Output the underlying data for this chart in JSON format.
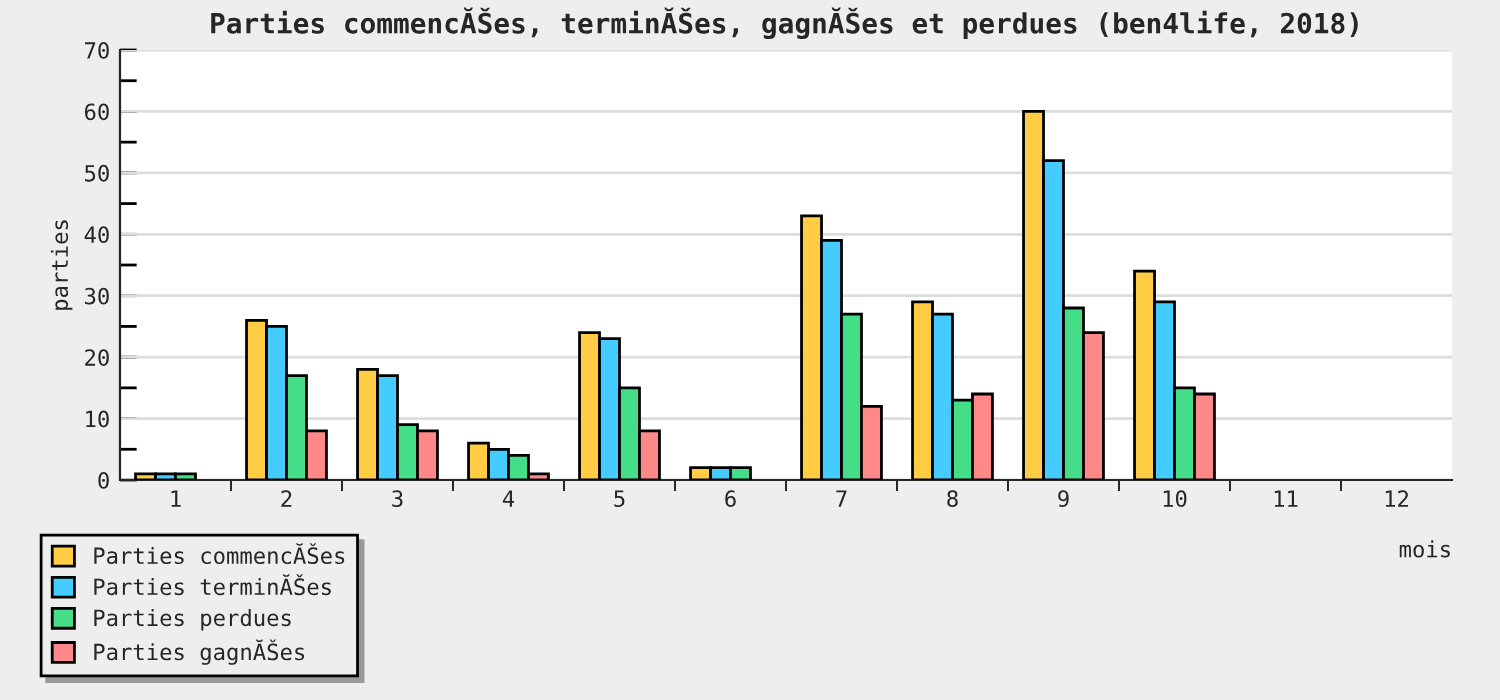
{
  "chart_data": {
    "type": "bar",
    "title": "Parties commencĂŠes, terminĂŠes, gagnĂŠes et perdues (ben4life, 2018)",
    "xlabel": "mois",
    "ylabel": "parties",
    "categories": [
      "1",
      "2",
      "3",
      "4",
      "5",
      "6",
      "7",
      "8",
      "9",
      "10",
      "11",
      "12"
    ],
    "series": [
      {
        "name": "Parties commencĂŠes",
        "color": "#ffcc44",
        "values": [
          1,
          26,
          18,
          6,
          24,
          2,
          43,
          29,
          60,
          34,
          null,
          null
        ]
      },
      {
        "name": "Parties terminĂŠes",
        "color": "#44ccff",
        "values": [
          1,
          25,
          17,
          5,
          23,
          2,
          39,
          27,
          52,
          29,
          null,
          null
        ]
      },
      {
        "name": "Parties perdues",
        "color": "#44dd88",
        "values": [
          1,
          17,
          9,
          4,
          15,
          2,
          27,
          13,
          28,
          15,
          null,
          null
        ]
      },
      {
        "name": "Parties gagnĂŠes",
        "color": "#ff8888",
        "values": [
          null,
          8,
          8,
          1,
          8,
          null,
          12,
          14,
          24,
          14,
          null,
          null
        ]
      }
    ],
    "ylim": [
      0,
      70
    ],
    "yticks": [
      0,
      {
        "value": 5,
        "label": null
      },
      10,
      {
        "value": 15,
        "label": null
      },
      20,
      {
        "value": 25,
        "label": null
      },
      30,
      {
        "value": 35,
        "label": null
      },
      40,
      {
        "value": 45,
        "label": null
      },
      50,
      {
        "value": 55,
        "label": null
      },
      60,
      {
        "value": 65,
        "label": null
      },
      70
    ],
    "grid": "y",
    "legend": "bottom left"
  }
}
